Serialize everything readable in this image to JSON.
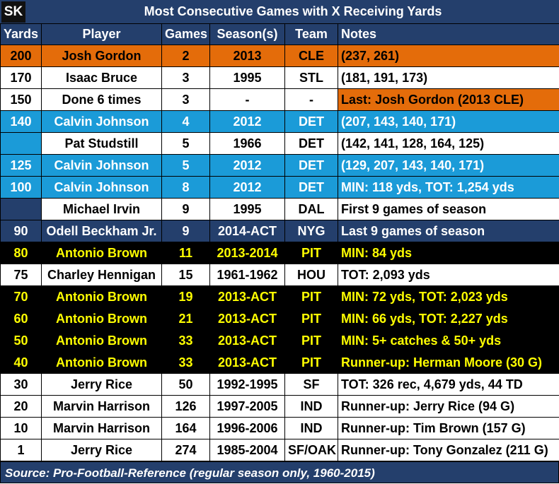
{
  "header": {
    "logo": "SK",
    "title": "Most Consecutive Games with X Receiving Yards"
  },
  "chart_data": {
    "type": "table",
    "title": "Most Consecutive Games with X Receiving Yards",
    "columns": [
      "Yards",
      "Player",
      "Games",
      "Season(s)",
      "Team",
      "Notes"
    ],
    "rows": [
      {
        "cells": [
          "200",
          "Josh Gordon",
          "2",
          "2013",
          "CLE",
          "(237, 261)"
        ],
        "style": "orange"
      },
      {
        "cells": [
          "170",
          "Isaac Bruce",
          "3",
          "1995",
          "STL",
          "(181, 191, 173)"
        ],
        "style": "white"
      },
      {
        "cells": [
          "150",
          "Done 6 times",
          "3",
          "-",
          "-",
          "Last: Josh Gordon (2013 CLE)"
        ],
        "style": "white-notes-orange"
      },
      {
        "cells": [
          "140",
          "Calvin Johnson",
          "4",
          "2012",
          "DET",
          "(207, 143, 140, 171)"
        ],
        "style": "blue"
      },
      {
        "cells": [
          "",
          "Pat Studstill",
          "5",
          "1966",
          "DET",
          "(142, 141, 128, 164, 125)"
        ],
        "style": "white-yards-blue"
      },
      {
        "cells": [
          "125",
          "Calvin Johnson",
          "5",
          "2012",
          "DET",
          "(129, 207, 143, 140, 171)"
        ],
        "style": "blue"
      },
      {
        "cells": [
          "100",
          "Calvin Johnson",
          "8",
          "2012",
          "DET",
          "MIN: 118 yds, TOT: 1,254 yds"
        ],
        "style": "blue"
      },
      {
        "cells": [
          "",
          "Michael Irvin",
          "9",
          "1995",
          "DAL",
          "First 9 games of season"
        ],
        "style": "white-yards-navy"
      },
      {
        "cells": [
          "90",
          "Odell Beckham Jr.",
          "9",
          "2014-ACT",
          "NYG",
          "Last 9 games of season"
        ],
        "style": "navy"
      },
      {
        "cells": [
          "80",
          "Antonio Brown",
          "11",
          "2013-2014",
          "PIT",
          "MIN: 84 yds"
        ],
        "style": "black"
      },
      {
        "cells": [
          "75",
          "Charley Hennigan",
          "15",
          "1961-1962",
          "HOU",
          "TOT: 2,093 yds"
        ],
        "style": "white"
      },
      {
        "cells": [
          "70",
          "Antonio Brown",
          "19",
          "2013-ACT",
          "PIT",
          "MIN: 72 yds, TOT: 2,023 yds"
        ],
        "style": "black"
      },
      {
        "cells": [
          "60",
          "Antonio Brown",
          "21",
          "2013-ACT",
          "PIT",
          "MIN: 66 yds, TOT: 2,227 yds"
        ],
        "style": "black"
      },
      {
        "cells": [
          "50",
          "Antonio Brown",
          "33",
          "2013-ACT",
          "PIT",
          "MIN: 5+ catches & 50+ yds"
        ],
        "style": "black"
      },
      {
        "cells": [
          "40",
          "Antonio Brown",
          "33",
          "2013-ACT",
          "PIT",
          "Runner-up: Herman Moore (30 G)"
        ],
        "style": "black"
      },
      {
        "cells": [
          "30",
          "Jerry Rice",
          "50",
          "1992-1995",
          "SF",
          "TOT: 326 rec, 4,679 yds, 44 TD"
        ],
        "style": "white"
      },
      {
        "cells": [
          "20",
          "Marvin Harrison",
          "126",
          "1997-2005",
          "IND",
          "Runner-up: Jerry Rice (94 G)"
        ],
        "style": "white"
      },
      {
        "cells": [
          "10",
          "Marvin Harrison",
          "164",
          "1996-2006",
          "IND",
          "Runner-up: Tim Brown (157 G)"
        ],
        "style": "white"
      },
      {
        "cells": [
          "1",
          "Jerry Rice",
          "274",
          "1985-2004",
          "SF/OAK",
          "Runner-up: Tony Gonzalez (211 G)"
        ],
        "style": "white"
      }
    ]
  },
  "footer": {
    "source": "Source: Pro-Football-Reference (regular season only, 1960-2015)"
  },
  "colors": {
    "navy": "#243f6c",
    "orange": "#e46c0a",
    "blue": "#1b9bd8",
    "black": "#000000",
    "yellow": "#ffff00",
    "white": "#ffffff"
  }
}
